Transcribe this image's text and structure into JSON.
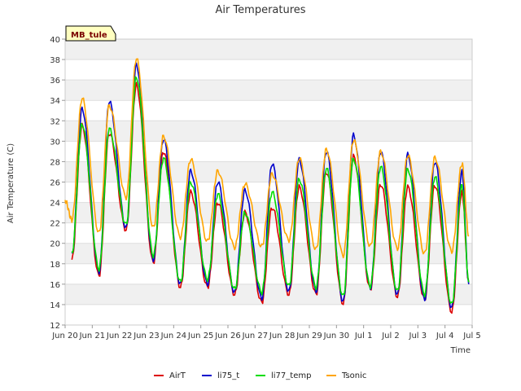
{
  "chart_data": {
    "type": "line",
    "title": "Air Temperatures",
    "xlabel": "Time",
    "ylabel": "Air Temperature (C)",
    "site_label": "MB_tule",
    "ylim": [
      12,
      40
    ],
    "yticks": [
      12,
      14,
      16,
      18,
      20,
      22,
      24,
      26,
      28,
      30,
      32,
      34,
      36,
      38,
      40
    ],
    "xlim": [
      "2024-06-20",
      "2024-07-05"
    ],
    "x_ticks": [
      {
        "date": "2024-06-20",
        "label": "Jun 20"
      },
      {
        "date": "2024-06-21",
        "label": "Jun 21"
      },
      {
        "date": "2024-06-22",
        "label": "Jun 22"
      },
      {
        "date": "2024-06-23",
        "label": "Jun 23"
      },
      {
        "date": "2024-06-24",
        "label": "Jun 24"
      },
      {
        "date": "2024-06-25",
        "label": "Jun 25"
      },
      {
        "date": "2024-06-26",
        "label": "Jun 26"
      },
      {
        "date": "2024-06-27",
        "label": "Jun 27"
      },
      {
        "date": "2024-06-28",
        "label": "Jun 28"
      },
      {
        "date": "2024-06-29",
        "label": "Jun 29"
      },
      {
        "date": "2024-06-30",
        "label": "Jun 30"
      },
      {
        "date": "2024-07-01",
        "label": "Jul 1"
      },
      {
        "date": "2024-07-02",
        "label": "Jul 2"
      },
      {
        "date": "2024-07-03",
        "label": "Jul 3"
      },
      {
        "date": "2024-07-04",
        "label": "Jul 4"
      },
      {
        "date": "2024-07-05",
        "label": "Jul 5"
      }
    ],
    "grid": "horizontal bands",
    "legend_position": "bottom",
    "series": [
      {
        "name": "AirT",
        "color": "#dd0000",
        "x": [
          "2024-06-20 06:00",
          "2024-06-20 15:00",
          "2024-06-21 06:00",
          "2024-06-21 15:00",
          "2024-06-22 06:00",
          "2024-06-22 15:00",
          "2024-06-23 06:00",
          "2024-06-23 15:00",
          "2024-06-24 06:00",
          "2024-06-24 15:00",
          "2024-06-25 06:00",
          "2024-06-25 15:00",
          "2024-06-26 06:00",
          "2024-06-26 15:00",
          "2024-06-27 06:00",
          "2024-06-27 15:00",
          "2024-06-28 06:00",
          "2024-06-28 15:00",
          "2024-06-29 06:00",
          "2024-06-29 15:00",
          "2024-06-30 06:00",
          "2024-06-30 15:00",
          "2024-07-01 06:00",
          "2024-07-01 15:00",
          "2024-07-02 06:00",
          "2024-07-02 15:00",
          "2024-07-03 06:00",
          "2024-07-03 15:00",
          "2024-07-04 06:00",
          "2024-07-04 15:00",
          "2024-07-04 21:00"
        ],
        "y": [
          18.4,
          31.5,
          16.8,
          30.8,
          21.3,
          35.5,
          18.1,
          29.0,
          15.7,
          25.0,
          15.7,
          24.0,
          15.0,
          23.0,
          14.2,
          23.5,
          15.0,
          25.5,
          15.0,
          27.0,
          14.1,
          28.5,
          15.5,
          25.8,
          14.8,
          25.5,
          14.5,
          25.7,
          13.3,
          25.0,
          16.2
        ]
      },
      {
        "name": "li75_t",
        "color": "#0000cc",
        "x": [
          "2024-06-20 06:00",
          "2024-06-20 15:00",
          "2024-06-21 06:00",
          "2024-06-21 15:00",
          "2024-06-22 06:00",
          "2024-06-22 15:00",
          "2024-06-23 06:00",
          "2024-06-23 15:00",
          "2024-06-24 06:00",
          "2024-06-24 15:00",
          "2024-06-25 06:00",
          "2024-06-25 15:00",
          "2024-06-26 06:00",
          "2024-06-26 15:00",
          "2024-06-27 06:00",
          "2024-06-27 15:00",
          "2024-06-28 06:00",
          "2024-06-28 15:00",
          "2024-06-29 06:00",
          "2024-06-29 15:00",
          "2024-06-30 06:00",
          "2024-06-30 15:00",
          "2024-07-01 06:00",
          "2024-07-01 15:00",
          "2024-07-02 06:00",
          "2024-07-02 15:00",
          "2024-07-03 06:00",
          "2024-07-03 15:00",
          "2024-07-04 06:00",
          "2024-07-04 15:00",
          "2024-07-04 21:00"
        ],
        "y": [
          18.8,
          33.2,
          17.2,
          33.9,
          21.5,
          37.5,
          18.4,
          30.2,
          16.0,
          27.1,
          16.0,
          26.0,
          15.2,
          25.2,
          14.6,
          27.8,
          15.3,
          28.2,
          15.3,
          29.0,
          14.3,
          30.6,
          15.6,
          29.0,
          15.0,
          28.7,
          14.5,
          28.0,
          13.7,
          27.0,
          16.0
        ]
      },
      {
        "name": "li77_temp",
        "color": "#00dd00",
        "x": [
          "2024-06-20 06:00",
          "2024-06-20 15:00",
          "2024-06-21 06:00",
          "2024-06-21 15:00",
          "2024-06-22 06:00",
          "2024-06-22 15:00",
          "2024-06-23 06:00",
          "2024-06-23 15:00",
          "2024-06-24 06:00",
          "2024-06-24 15:00",
          "2024-06-25 06:00",
          "2024-06-25 15:00",
          "2024-06-26 06:00",
          "2024-06-26 15:00",
          "2024-06-27 06:00",
          "2024-06-27 15:00",
          "2024-06-28 06:00",
          "2024-06-28 15:00",
          "2024-06-29 06:00",
          "2024-06-29 15:00",
          "2024-06-30 06:00",
          "2024-06-30 15:00",
          "2024-07-01 06:00",
          "2024-07-01 15:00",
          "2024-07-02 06:00",
          "2024-07-02 15:00",
          "2024-07-03 06:00",
          "2024-07-03 15:00",
          "2024-07-04 06:00",
          "2024-07-04 15:00",
          "2024-07-04 21:00"
        ],
        "y": [
          19.0,
          31.7,
          17.5,
          31.2,
          21.8,
          36.3,
          18.8,
          28.3,
          16.2,
          26.0,
          16.5,
          24.8,
          15.5,
          23.0,
          15.2,
          25.0,
          15.8,
          26.3,
          15.7,
          27.3,
          14.8,
          28.3,
          15.8,
          27.5,
          15.3,
          27.3,
          15.0,
          26.5,
          14.0,
          25.7,
          16.2
        ]
      },
      {
        "name": "Tsonic",
        "color": "#ffa500",
        "x": [
          "2024-06-20 00:00",
          "2024-06-20 06:00",
          "2024-06-20 15:00",
          "2024-06-21 06:00",
          "2024-06-21 15:00",
          "2024-06-22 06:00",
          "2024-06-22 15:00",
          "2024-06-23 06:00",
          "2024-06-23 15:00",
          "2024-06-24 06:00",
          "2024-06-24 15:00",
          "2024-06-25 06:00",
          "2024-06-25 15:00",
          "2024-06-26 06:00",
          "2024-06-26 15:00",
          "2024-06-27 06:00",
          "2024-06-27 15:00",
          "2024-06-28 06:00",
          "2024-06-28 15:00",
          "2024-06-29 06:00",
          "2024-06-29 15:00",
          "2024-06-30 06:00",
          "2024-06-30 15:00",
          "2024-07-01 06:00",
          "2024-07-01 15:00",
          "2024-07-02 06:00",
          "2024-07-02 15:00",
          "2024-07-03 06:00",
          "2024-07-03 15:00",
          "2024-07-04 06:00",
          "2024-07-04 15:00",
          "2024-07-04 21:00"
        ],
        "y": [
          24.2,
          22.3,
          34.2,
          21.0,
          33.5,
          24.5,
          38.1,
          21.5,
          30.5,
          20.6,
          28.2,
          20.2,
          27.1,
          19.6,
          25.8,
          19.7,
          26.8,
          20.3,
          28.3,
          19.4,
          29.2,
          18.8,
          30.1,
          19.7,
          29.0,
          19.5,
          28.6,
          19.0,
          28.4,
          19.2,
          27.8,
          20.8
        ]
      }
    ]
  }
}
